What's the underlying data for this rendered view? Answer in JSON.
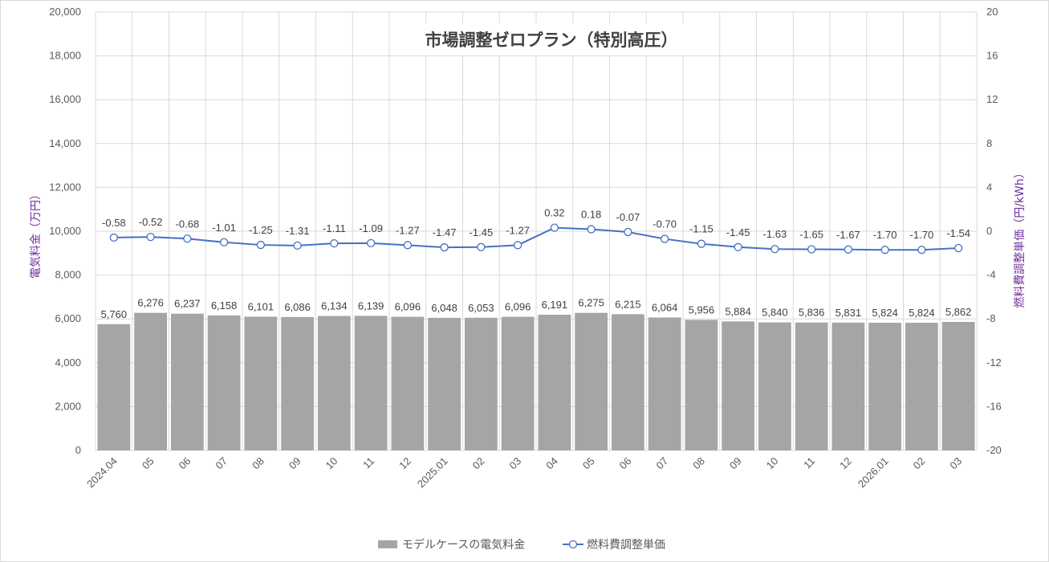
{
  "chart_data": {
    "type": "bar+line",
    "title": "市場調整ゼロプラン（特別高圧）",
    "categories": [
      "2024.04",
      "05",
      "06",
      "07",
      "08",
      "09",
      "10",
      "11",
      "12",
      "2025.01",
      "02",
      "03",
      "04",
      "05",
      "06",
      "07",
      "08",
      "09",
      "10",
      "11",
      "12",
      "2026.01",
      "02",
      "03"
    ],
    "series": [
      {
        "name": "モデルケースの電気料金",
        "type": "bar",
        "axis": "left",
        "color": "#a5a5a5",
        "values": [
          5760,
          6276,
          6237,
          6158,
          6101,
          6086,
          6134,
          6139,
          6096,
          6048,
          6053,
          6096,
          6191,
          6275,
          6215,
          6064,
          5956,
          5884,
          5840,
          5836,
          5831,
          5824,
          5824,
          5862
        ],
        "labels": [
          "5,760",
          "6,276",
          "6,237",
          "6,158",
          "6,101",
          "6,086",
          "6,134",
          "6,139",
          "6,096",
          "6,048",
          "6,053",
          "6,096",
          "6,191",
          "6,275",
          "6,215",
          "6,064",
          "5,956",
          "5,884",
          "5,840",
          "5,836",
          "5,831",
          "5,824",
          "5,824",
          "5,862"
        ]
      },
      {
        "name": "燃料費調整単価",
        "type": "line",
        "axis": "right",
        "color": "#4472c4",
        "values": [
          -0.58,
          -0.52,
          -0.68,
          -1.01,
          -1.25,
          -1.31,
          -1.11,
          -1.09,
          -1.27,
          -1.47,
          -1.45,
          -1.27,
          0.32,
          0.18,
          -0.07,
          -0.7,
          -1.15,
          -1.45,
          -1.63,
          -1.65,
          -1.67,
          -1.7,
          -1.7,
          -1.54
        ],
        "labels": [
          "-0.58",
          "-0.52",
          "-0.68",
          "-1.01",
          "-1.25",
          "-1.31",
          "-1.11",
          "-1.09",
          "-1.27",
          "-1.47",
          "-1.45",
          "-1.27",
          "0.32",
          "0.18",
          "-0.07",
          "-0.70",
          "-1.15",
          "-1.45",
          "-1.63",
          "-1.65",
          "-1.67",
          "-1.70",
          "-1.70",
          "-1.54"
        ]
      }
    ],
    "ylabel": "電気料金（万円）",
    "y2label": "燃料費調整単価（円/kWh）",
    "ylim": [
      0,
      20000
    ],
    "y2lim": [
      -20,
      20
    ],
    "yticks": [
      "0",
      "2,000",
      "4,000",
      "6,000",
      "8,000",
      "10,000",
      "12,000",
      "14,000",
      "16,000",
      "18,000",
      "20,000"
    ],
    "y2ticks": [
      "-20",
      "-16",
      "-12",
      "-8",
      "-4",
      "0",
      "4",
      "8",
      "12",
      "16",
      "20"
    ],
    "axis_title_color": "#7030a0",
    "grid": true,
    "legend": "bottom"
  }
}
